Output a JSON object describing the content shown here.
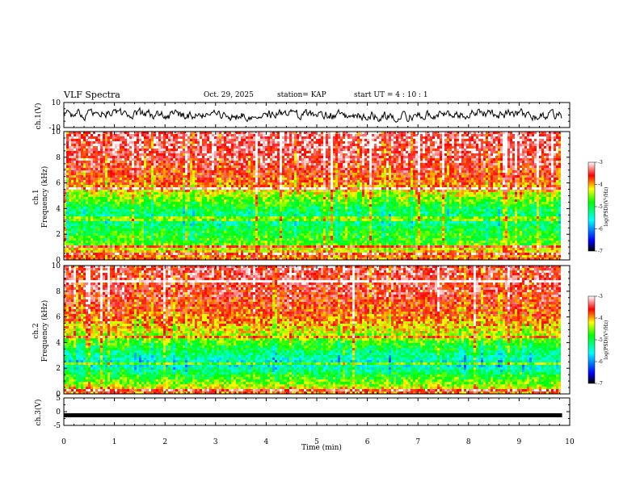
{
  "header": {
    "title": "VLF Spectra",
    "date": "Oct. 29, 2025",
    "station": "station= KAP",
    "start": "start  UT =   4 : 10 : 1"
  },
  "colors": {
    "colormap": [
      "#000000",
      "#0000ff",
      "#00ffff",
      "#00ff00",
      "#ffff00",
      "#ff0000",
      "#ffffff"
    ],
    "trace": "#000000"
  },
  "chart_data": [
    {
      "type": "line",
      "name": "ch1-voltage",
      "ylabel": "ch.1(V)",
      "ylim": [
        -10,
        10
      ],
      "ytick_labels": [
        "-10",
        "10"
      ],
      "xlim": [
        0,
        9.85
      ],
      "description_values": "noisy trace oscillating roughly between -4 and 4 V"
    },
    {
      "type": "heatmap",
      "name": "ch1-spectrogram",
      "ylabel": "ch.1\nFrequency  (kHz)",
      "ylabel_lines": [
        "ch.1",
        "Frequency  (kHz)"
      ],
      "ylim": [
        0,
        10
      ],
      "ytick_labels": [
        "0",
        "2",
        "4",
        "6",
        "8",
        "10"
      ],
      "xlim": [
        0,
        9.85
      ],
      "band_profile_khz": [
        [
          0,
          -3.7
        ],
        [
          0.8,
          -4.2
        ],
        [
          1.3,
          -4.7
        ],
        [
          2.2,
          -4.9
        ],
        [
          3.2,
          -5.3
        ],
        [
          4.0,
          -5.0
        ],
        [
          5.0,
          -4.4
        ],
        [
          6.0,
          -3.8
        ],
        [
          8.0,
          -3.4
        ],
        [
          10,
          -3.3
        ]
      ],
      "colorbar": {
        "label": "log(PSD)(V²/Hz)",
        "range": [
          -7,
          -3
        ],
        "tick_labels": [
          "-3",
          "-4",
          "-5",
          "-6",
          "-7"
        ]
      }
    },
    {
      "type": "heatmap",
      "name": "ch2-spectrogram",
      "ylabel": "ch.2\nFrequency  (kHz)",
      "ylabel_lines": [
        "ch.2",
        "Frequency  (kHz)"
      ],
      "ylim": [
        0,
        10
      ],
      "ytick_labels": [
        "0",
        "2",
        "4",
        "6",
        "8",
        "10"
      ],
      "xlim": [
        0,
        9.85
      ],
      "band_profile_khz": [
        [
          0,
          -3.8
        ],
        [
          0.8,
          -4.5
        ],
        [
          1.5,
          -4.9
        ],
        [
          2.3,
          -5.6
        ],
        [
          3.3,
          -5.1
        ],
        [
          4.2,
          -4.6
        ],
        [
          5.0,
          -4.2
        ],
        [
          6.0,
          -3.8
        ],
        [
          8.0,
          -3.5
        ],
        [
          10,
          -3.4
        ]
      ],
      "colorbar": {
        "label": "log(PSD)(V²/Hz)",
        "range": [
          -7,
          -3
        ],
        "tick_labels": [
          "-3",
          "-4",
          "-5",
          "-6",
          "-7"
        ]
      }
    },
    {
      "type": "line",
      "name": "ch3-voltage",
      "ylabel": "ch.3(V)",
      "ylim": [
        -5,
        5
      ],
      "ytick_labels": [
        "-5",
        "0",
        "5"
      ],
      "level": -1.3,
      "xlim": [
        0,
        9.85
      ]
    }
  ],
  "xaxis": {
    "label": "Time  (min)",
    "range": [
      0,
      10
    ],
    "tick_labels": [
      "0",
      "1",
      "2",
      "3",
      "4",
      "5",
      "6",
      "7",
      "8",
      "9",
      "10"
    ]
  }
}
